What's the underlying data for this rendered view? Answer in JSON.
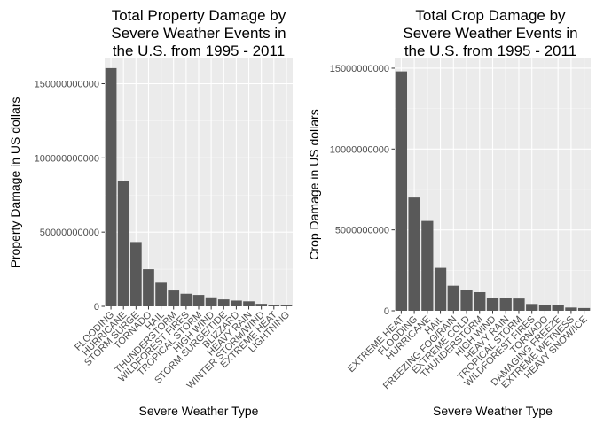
{
  "chart_data": [
    {
      "type": "bar",
      "title": [
        "Total Property Damage by",
        "Severe Weather Events in",
        "the U.S. from 1995 - 2011"
      ],
      "xlabel": "Severe Weather Type",
      "ylabel": "Property Damage in US dollars",
      "categories": [
        "FLOODING",
        "HURRICANE",
        "STORM SURGE",
        "TORNADO",
        "HAIL",
        "THUNDERSTORM",
        "WILDFOREST FIRES",
        "TROPICAL STORM",
        "HIGH WIND",
        "STORM SURGE/TIDE",
        "BLIZZARD",
        "HEAVY RAIN",
        "WINTER STORM/WIND",
        "EXTREME HEAT",
        "LIGHTNING"
      ],
      "values": [
        160500000000,
        84700000000,
        43300000000,
        25000000000,
        15900000000,
        10700000000,
        8500000000,
        7700000000,
        6100000000,
        4700000000,
        3900000000,
        3400000000,
        1700000000,
        1000000000,
        900000000
      ],
      "ylim": [
        0,
        167000000000
      ],
      "yticks": [
        0,
        50000000000,
        100000000000,
        150000000000
      ],
      "ytick_labels": [
        "0",
        "50000000000",
        "100000000000",
        "150000000000"
      ],
      "grid": true,
      "bar_color": "#595959",
      "panel_color": "#ebebeb"
    },
    {
      "type": "bar",
      "title": [
        "Total Crop Damage by",
        "Severe Weather Events in",
        "the U.S. from 1995 - 2011"
      ],
      "xlabel": "Severe Weather Type",
      "ylabel": "Crop Damage in US dollars",
      "categories": [
        "EXTREME HEAT",
        "FLOODING",
        "HURRICANE",
        "HAIL",
        "FREEZING FOG/RAIN",
        "EXTREME COLD",
        "THUNDERSTORM",
        "HIGH WIND",
        "HEAVY RAIN",
        "TROPICAL STORM",
        "WILDFOREST FIRES",
        "TORNADO",
        "DAMAGING FREEZE",
        "EXTREME WETNESS",
        "HEAVY SNOW/ICE"
      ],
      "values": [
        14800000000,
        7000000000,
        5550000000,
        2650000000,
        1550000000,
        1300000000,
        1150000000,
        800000000,
        780000000,
        760000000,
        420000000,
        380000000,
        370000000,
        200000000,
        170000000
      ],
      "ylim": [
        0,
        15600000000
      ],
      "yticks": [
        0,
        5000000000,
        10000000000,
        15000000000
      ],
      "ytick_labels": [
        "0",
        "5000000000",
        "10000000000",
        "15000000000"
      ],
      "grid": true,
      "bar_color": "#595959",
      "panel_color": "#ebebeb"
    }
  ]
}
